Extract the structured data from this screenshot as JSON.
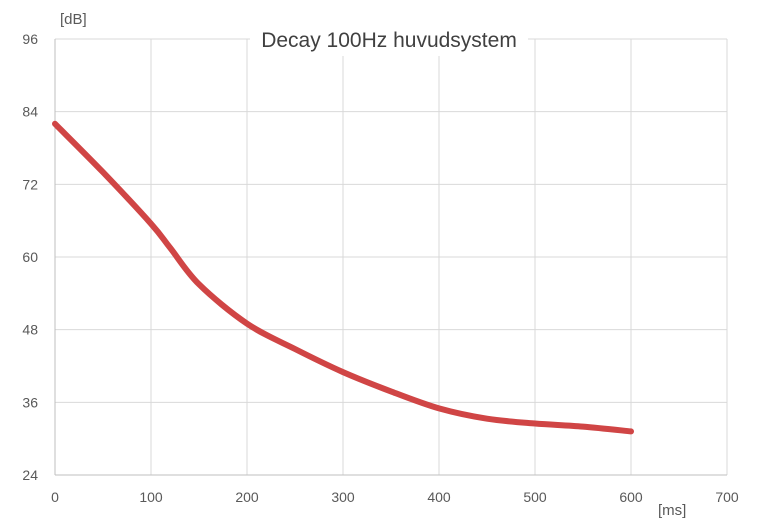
{
  "chart_data": {
    "type": "line",
    "title": "Decay 100Hz huvudsystem",
    "xlabel": "[ms]",
    "ylabel": "[dB]",
    "xlim": [
      0,
      700
    ],
    "ylim": [
      24,
      96
    ],
    "x_ticks": [
      "0",
      "100",
      "200",
      "300",
      "400",
      "500",
      "600",
      "700"
    ],
    "y_ticks": [
      "24",
      "36",
      "48",
      "60",
      "72",
      "84",
      "96"
    ],
    "grid": true,
    "series": [
      {
        "color": "#d04545",
        "x": [
          0,
          50,
          100,
          120,
          150,
          200,
          250,
          300,
          350,
          400,
          450,
          500,
          550,
          600
        ],
        "y": [
          82,
          74,
          65.5,
          61.5,
          55.5,
          49,
          44.8,
          41,
          37.8,
          35,
          33.3,
          32.5,
          32,
          31.2
        ]
      }
    ]
  }
}
